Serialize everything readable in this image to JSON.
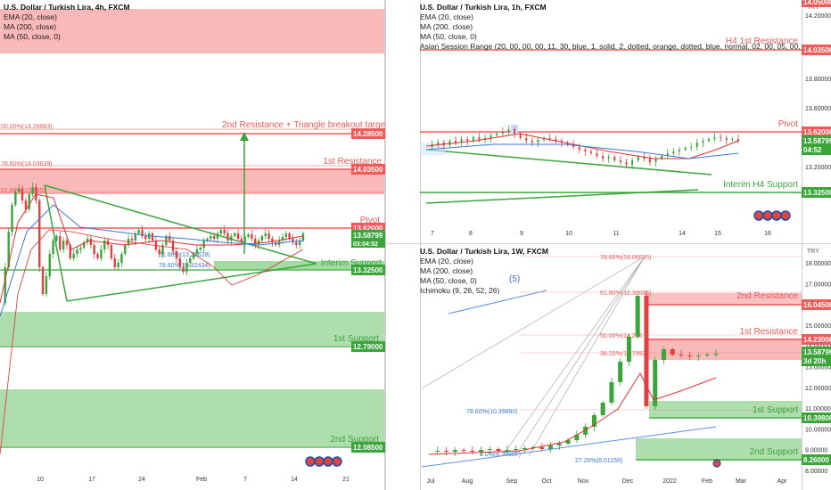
{
  "colors": {
    "res": "#f05a5a",
    "resFill": "#f7a8a8",
    "sup": "#5cb85c",
    "supFill": "#9ad69a",
    "green": "#3aa63a",
    "up": "#3aa63a",
    "down": "#e04040",
    "ema": "#e03030",
    "ma200": "#3a78d8",
    "ma50": "#222"
  },
  "panels": [
    {
      "id": "p4h",
      "title": "U.S. Dollar / Turkish Lira, 4h, FXCM",
      "legend": [
        "EMA (20, close)",
        "MA (200, close)",
        "MA (50, close, 0)"
      ],
      "ticks": [
        "15.00000",
        "14.80000",
        "14.60000",
        "14.40000",
        "14.20000",
        "14.00000",
        "13.80000",
        "13.60000",
        "13.40000",
        "13.20000",
        "13.00000",
        "12.80000",
        "12.60000",
        "12.40000",
        "12.20000",
        "12.00000"
      ],
      "xticks": [
        "10",
        "17",
        "24",
        "Feb",
        "7",
        "14",
        "21"
      ],
      "fib": [
        "00.00%(14.28883)",
        "78.60%(14.03639)",
        "61.80%(13.8352",
        "61.80%(13.39628)",
        "78.60%(13.32434)"
      ],
      "levels": [
        {
          "text": "2nd Resistance + Triangle breakout target",
          "price": "14.28500"
        },
        {
          "text": "1st Resistance",
          "price": "14.03500"
        },
        {
          "text": "Pivot",
          "price": "13.62000"
        },
        {
          "text": "Interim Support",
          "price": "13.32500"
        },
        {
          "text": "1st Support",
          "price": "12.79000"
        },
        {
          "text": "2nd Support",
          "price": "12.08500"
        }
      ],
      "current": [
        "13.58799",
        "03:04:52"
      ]
    },
    {
      "id": "p1h",
      "title": "U.S. Dollar / Turkish Lira, 1h, FXCM",
      "legend": [
        "EMA (20, close)",
        "MA (200, close)",
        "MA (50, close, 0)",
        "Asian Session Range (20, 00, 00, 00, 11, 30, blue, 1, solid, 2, dotted, orange, dotted, blue, normal, 02, 00, 05, 00, teal, 1, solid, 2, dotted, teal, dotted"
      ],
      "ticks": [
        "14.20000",
        "14.00000",
        "13.80000",
        "13.60000",
        "13.40000",
        "13.20000"
      ],
      "topticks": [
        "14.05000"
      ],
      "xticks": [
        "7",
        "8",
        "9",
        "10",
        "11",
        "14",
        "15",
        "16"
      ],
      "currency": "TRY",
      "levels": [
        {
          "text": "H4 1st Resistance",
          "price": "14.03500"
        },
        {
          "text": "Pivot",
          "price": "13.62000"
        },
        {
          "text": "Interim H4 Support",
          "price": "13.32500"
        }
      ],
      "current": [
        "13.58799",
        "04:52"
      ]
    },
    {
      "id": "p1w",
      "title": "U.S. Dollar / Turkish Lira, 1W, FXCM",
      "legend": [
        "EMA (20, close)",
        "MA (200, close)",
        "MA (50, close, 0)",
        "Ichimoku (9, 26, 52, 26)"
      ],
      "ticks": [
        "18.00000",
        "17.00000",
        "16.00000",
        "15.00000",
        "14.00000",
        "13.00000",
        "12.00000",
        "11.00000",
        "10.00000",
        "9.00000",
        "8.00000"
      ],
      "xticks": [
        "Jul",
        "Aug",
        "Sep",
        "Oct",
        "Nov",
        "Dec",
        "2022",
        "Feb",
        "Mar",
        "Apr"
      ],
      "currency": "TRY",
      "wave": "(5)",
      "fib": [
        "78.60%(18.06035)",
        "61.80%(16.38085)",
        "50.00%(14.236",
        "38.20%(13.7992",
        "78.60%(10.39890)",
        "27.20%(8.01159)",
        "8.0%(8.39907)"
      ],
      "levels": [
        {
          "text": "2nd Resistance",
          "price": "16.04500"
        },
        {
          "text": "1st Resistance",
          "price": "14.23000"
        },
        {
          "text": "1st Support",
          "price": "10.39800"
        },
        {
          "text": "2nd Support",
          "price": "8.26000"
        }
      ],
      "current": [
        "13.58799",
        "3d 20h"
      ]
    }
  ]
}
